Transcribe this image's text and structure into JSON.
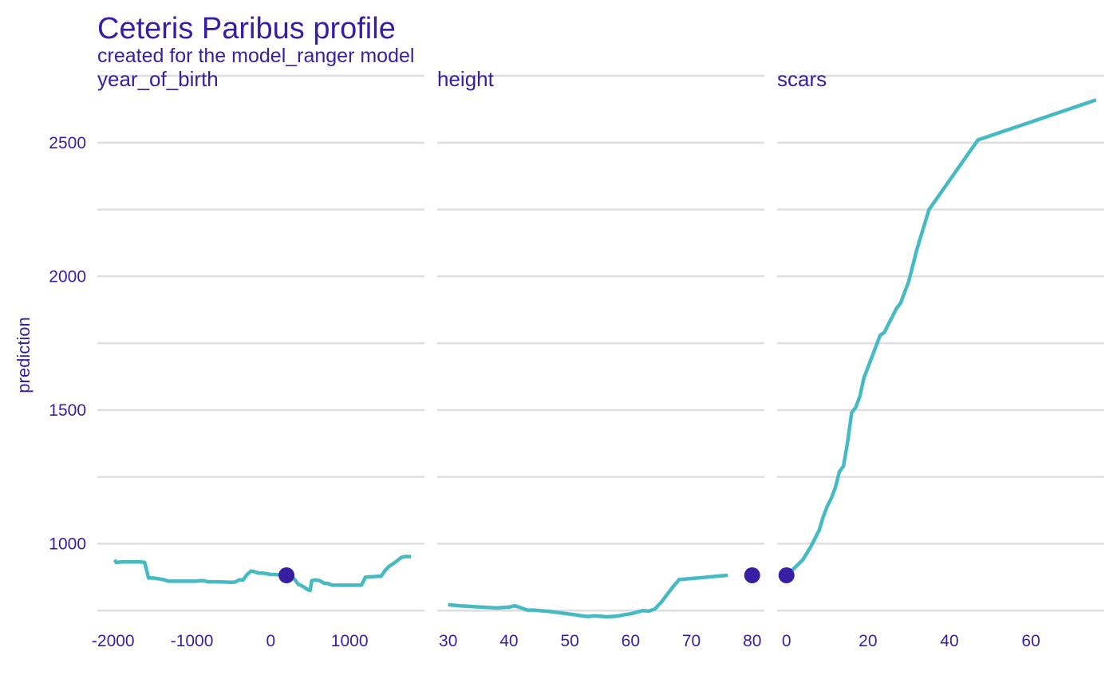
{
  "chart_data": {
    "type": "line",
    "title": "Ceteris Paribus profile",
    "subtitle": "created for the model_ranger model",
    "ylabel": "prediction",
    "ylim": [
      700,
      2750
    ],
    "yticks": [
      1000,
      1500,
      2000,
      2500
    ],
    "grid": true,
    "colors": {
      "profile": "#46bac2",
      "observation": "#371ea3",
      "text": "#371ea3",
      "grid": "#dedee2"
    },
    "panels": [
      {
        "name": "year_of_birth",
        "label": "year_of_birth",
        "xlim": [
          -2200,
          1950
        ],
        "xticks": [
          -2000,
          -1000,
          0,
          1000
        ],
        "observation": {
          "x": 200,
          "y": 882
        },
        "x": [
          -1980,
          -1960,
          -1900,
          -1800,
          -1700,
          -1650,
          -1600,
          -1550,
          -1500,
          -1400,
          -1350,
          -1300,
          -1250,
          -1150,
          -1050,
          -950,
          -900,
          -850,
          -800,
          -700,
          -600,
          -500,
          -450,
          -400,
          -350,
          -300,
          -250,
          -200,
          -150,
          -100,
          -50,
          0,
          50,
          100,
          150,
          200,
          250,
          300,
          350,
          380,
          420,
          460,
          500,
          520,
          560,
          620,
          680,
          720,
          780,
          850,
          950,
          1050,
          1150,
          1180,
          1200,
          1250,
          1300,
          1350,
          1400,
          1450,
          1500,
          1550,
          1600,
          1650,
          1700,
          1750,
          1780
        ],
        "y": [
          940,
          930,
          932,
          932,
          932,
          932,
          930,
          872,
          872,
          868,
          865,
          860,
          860,
          860,
          860,
          860,
          862,
          862,
          858,
          858,
          857,
          856,
          857,
          865,
          865,
          885,
          898,
          895,
          890,
          890,
          888,
          885,
          885,
          884,
          883,
          882,
          875,
          868,
          848,
          845,
          838,
          830,
          825,
          862,
          865,
          862,
          852,
          852,
          845,
          845,
          845,
          845,
          845,
          862,
          875,
          876,
          877,
          878,
          878,
          900,
          915,
          925,
          935,
          948,
          952,
          952,
          952
        ]
      },
      {
        "name": "height",
        "label": "height",
        "xlim": [
          28.2,
          82.0
        ],
        "xticks": [
          30,
          40,
          50,
          60,
          70,
          80
        ],
        "observation": {
          "x": 80,
          "y": 882
        },
        "x": [
          30,
          32,
          35,
          38,
          40,
          41,
          42,
          43,
          44,
          45,
          46,
          47,
          48,
          49,
          50,
          51,
          52,
          53,
          54,
          55,
          56,
          57,
          58,
          59,
          60,
          61,
          62,
          63,
          64,
          65,
          66,
          67,
          68,
          70,
          72,
          74,
          76
        ],
        "y": [
          772,
          768,
          764,
          760,
          763,
          768,
          760,
          752,
          752,
          750,
          748,
          746,
          743,
          740,
          737,
          734,
          730,
          728,
          730,
          729,
          727,
          728,
          730,
          735,
          738,
          744,
          750,
          748,
          756,
          780,
          810,
          840,
          866,
          870,
          874,
          878,
          882
        ]
      },
      {
        "name": "scars",
        "label": "scars",
        "xlim": [
          -2.3,
          78
        ],
        "xticks": [
          0,
          20,
          40,
          60
        ],
        "observation": {
          "x": 0,
          "y": 882
        },
        "x": [
          0,
          2,
          4,
          6,
          7,
          8,
          9,
          10,
          11,
          12,
          13,
          14,
          15,
          16,
          17,
          18,
          19,
          20,
          21,
          22,
          23,
          24,
          25,
          26,
          27,
          28,
          29,
          30,
          31,
          32,
          33,
          35,
          47,
          76
        ],
        "y": [
          882,
          910,
          940,
          990,
          1020,
          1050,
          1100,
          1140,
          1170,
          1210,
          1270,
          1290,
          1380,
          1490,
          1510,
          1550,
          1620,
          1660,
          1700,
          1740,
          1780,
          1790,
          1820,
          1850,
          1880,
          1900,
          1940,
          1980,
          2040,
          2100,
          2150,
          2250,
          2510,
          2660
        ]
      }
    ]
  }
}
